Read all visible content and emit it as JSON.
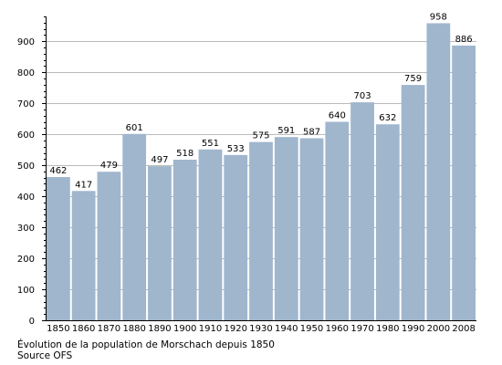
{
  "chart_data": {
    "type": "bar",
    "categories": [
      "1850",
      "1860",
      "1870",
      "1880",
      "1890",
      "1900",
      "1910",
      "1920",
      "1930",
      "1940",
      "1950",
      "1960",
      "1970",
      "1980",
      "1990",
      "2000",
      "2008"
    ],
    "values": [
      462,
      417,
      479,
      601,
      497,
      518,
      551,
      533,
      575,
      591,
      587,
      640,
      703,
      632,
      759,
      958,
      886
    ],
    "title": "Évolution de la population de Morschach depuis 1850",
    "source": "Source OFS",
    "xlabel": "",
    "ylabel": "",
    "ylim": [
      0,
      980
    ],
    "yticks": [
      0,
      100,
      200,
      300,
      400,
      500,
      600,
      700,
      800,
      900
    ],
    "grid": true,
    "bar_color": "#9fb6cd",
    "grid_color": "#bbbbbb"
  }
}
